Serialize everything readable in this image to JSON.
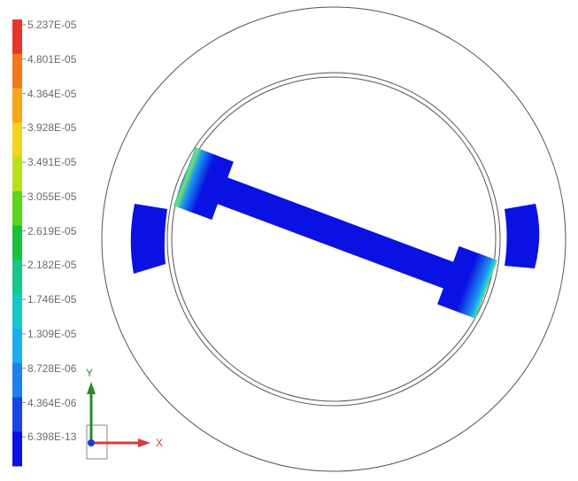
{
  "legend": {
    "labels": [
      "5.237E-05",
      "4.801E-05",
      "4.364E-05",
      "3.928E-05",
      "3.491E-05",
      "3.055E-05",
      "2.619E-05",
      "2.182E-05",
      "1.746E-05",
      "1.309E-05",
      "8.728E-06",
      "4.364E-06",
      "6.398E-13"
    ],
    "colors": [
      "#e8342a",
      "#f07a1a",
      "#f6a71a",
      "#f0d51b",
      "#b9e21a",
      "#5bd61c",
      "#17c33c",
      "#16c78a",
      "#16c9c9",
      "#19b0ee",
      "#1e80ee",
      "#1847e6",
      "#0a11e3"
    ]
  },
  "triad": {
    "x_label": "X",
    "y_label": "Y",
    "x_color": "#d83c3c",
    "y_color": "#2a8a2a"
  },
  "model": {
    "body_color": "#0a11e3",
    "hotspot_colors": [
      "#1ed0e0",
      "#7ee05a"
    ]
  }
}
